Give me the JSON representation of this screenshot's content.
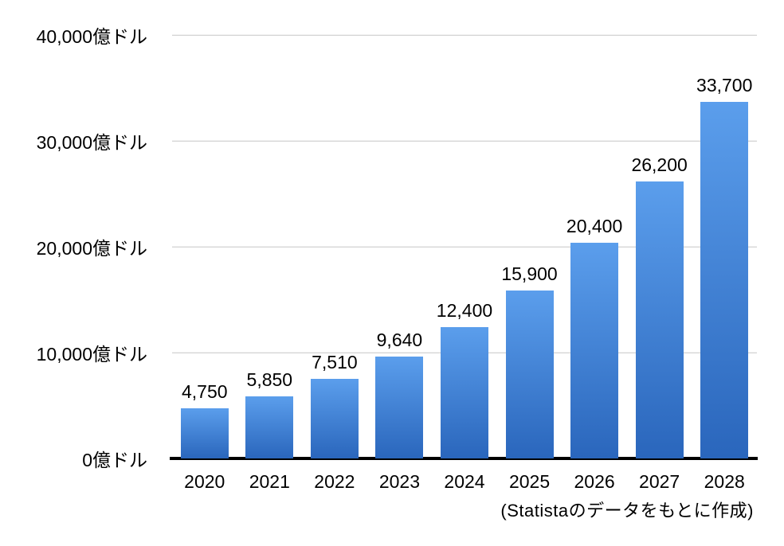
{
  "chart_data": {
    "type": "bar",
    "title": "",
    "categories": [
      "2020",
      "2021",
      "2022",
      "2023",
      "2024",
      "2025",
      "2026",
      "2027",
      "2028"
    ],
    "values": [
      4750,
      5850,
      7510,
      9640,
      12400,
      15900,
      20400,
      26200,
      33700
    ],
    "bar_labels": [
      "4,750",
      "5,850",
      "7,510",
      "9,640",
      "12,400",
      "15,900",
      "20,400",
      "26,200",
      "33,700"
    ],
    "y_ticks": [
      {
        "value": 0,
        "label": "0億ドル"
      },
      {
        "value": 10000,
        "label": "10,000億ドル"
      },
      {
        "value": 20000,
        "label": "20,000億ドル"
      },
      {
        "value": 30000,
        "label": "30,000億ドル"
      },
      {
        "value": 40000,
        "label": "40,000億ドル"
      }
    ],
    "ylim": [
      0,
      40000
    ],
    "xlabel": "",
    "ylabel": "",
    "unit": "億ドル",
    "grid": "horizontal",
    "legend": "none",
    "source_note": "(Statistaのデータをもとに作成)",
    "colors": {
      "bar_gradient_top": "#5b9eec",
      "bar_gradient_bottom": "#2a66bc",
      "gridline": "#c6c6c6",
      "axis_line": "#000000",
      "text": "#000000",
      "background": "#ffffff"
    }
  }
}
